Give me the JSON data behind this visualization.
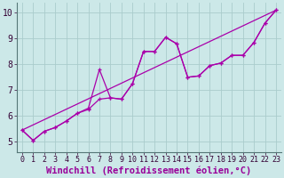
{
  "background_color": "#cce8e8",
  "grid_color": "#aacccc",
  "line_color": "#aa00aa",
  "marker": "+",
  "xlabel": "Windchill (Refroidissement éolien,°C)",
  "xlabel_color": "#990099",
  "xlim": [
    -0.5,
    23.5
  ],
  "ylim": [
    4.6,
    10.4
  ],
  "yticks": [
    5,
    6,
    7,
    8,
    9,
    10
  ],
  "xticks": [
    0,
    1,
    2,
    3,
    4,
    5,
    6,
    7,
    8,
    9,
    10,
    11,
    12,
    13,
    14,
    15,
    16,
    17,
    18,
    19,
    20,
    21,
    22,
    23
  ],
  "series1_x": [
    0,
    1,
    2,
    3,
    4,
    5,
    6,
    7,
    8,
    9,
    10,
    11,
    12,
    13,
    14,
    15,
    16,
    17,
    18,
    19,
    20,
    21,
    22,
    23
  ],
  "series1_y": [
    5.45,
    5.05,
    5.4,
    5.55,
    5.8,
    6.1,
    6.25,
    6.65,
    6.7,
    6.65,
    7.25,
    8.5,
    8.5,
    9.05,
    8.8,
    7.5,
    7.55,
    7.95,
    8.05,
    8.35,
    8.35,
    8.85,
    9.6,
    10.1
  ],
  "series2_x": [
    0,
    1,
    2,
    3,
    4,
    5,
    6,
    7,
    8,
    9,
    10,
    11,
    12,
    13,
    14,
    15,
    16,
    17,
    18,
    19,
    20,
    21,
    22,
    23
  ],
  "series2_y": [
    5.45,
    5.05,
    5.4,
    5.55,
    5.8,
    6.1,
    6.3,
    7.8,
    6.7,
    6.65,
    7.25,
    8.5,
    8.5,
    9.05,
    8.8,
    7.5,
    7.55,
    7.95,
    8.05,
    8.35,
    8.35,
    8.85,
    9.6,
    10.1
  ],
  "series3_x": [
    0,
    23
  ],
  "series3_y": [
    5.45,
    10.1
  ],
  "tick_fontsize": 6,
  "xlabel_fontsize": 7.5
}
